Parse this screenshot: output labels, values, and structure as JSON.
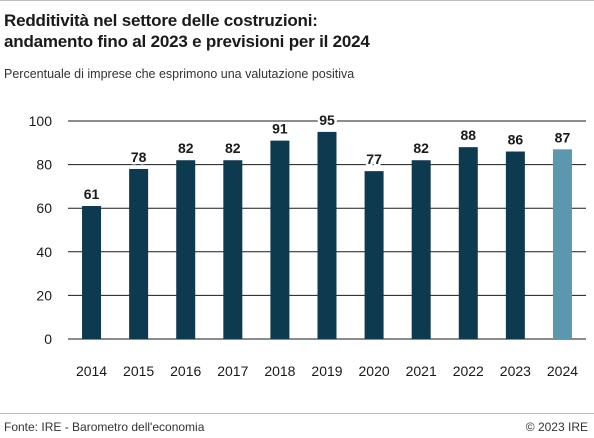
{
  "header": {
    "title_line1": "Redditività nel settore delle costruzioni:",
    "title_line2": "andamento fino al 2023 e previsioni per il 2024",
    "subtitle": "Percentuale di imprese che esprimono una valutazione positiva"
  },
  "footer": {
    "source": "Fonte: IRE - Barometro dell'economia",
    "copyright": "© 2023 IRE"
  },
  "colors": {
    "bar": "#0d3a4f",
    "forecast_bar": "#5b98b0",
    "grid": "#1a1a1a"
  },
  "chart_data": {
    "type": "bar",
    "title": "Redditività nel settore delle costruzioni: andamento fino al 2023 e previsioni per il 2024",
    "subtitle": "Percentuale di imprese che esprimono una valutazione positiva",
    "categories": [
      "2014",
      "2015",
      "2016",
      "2017",
      "2018",
      "2019",
      "2020",
      "2021",
      "2022",
      "2023",
      "2024"
    ],
    "values": [
      61,
      78,
      82,
      82,
      91,
      95,
      77,
      82,
      88,
      86,
      87
    ],
    "forecast_categories": [
      "2024"
    ],
    "ylim": [
      0,
      100
    ],
    "yticks": [
      0,
      20,
      40,
      60,
      80,
      100
    ],
    "grid": true,
    "xlabel": "",
    "ylabel": ""
  }
}
